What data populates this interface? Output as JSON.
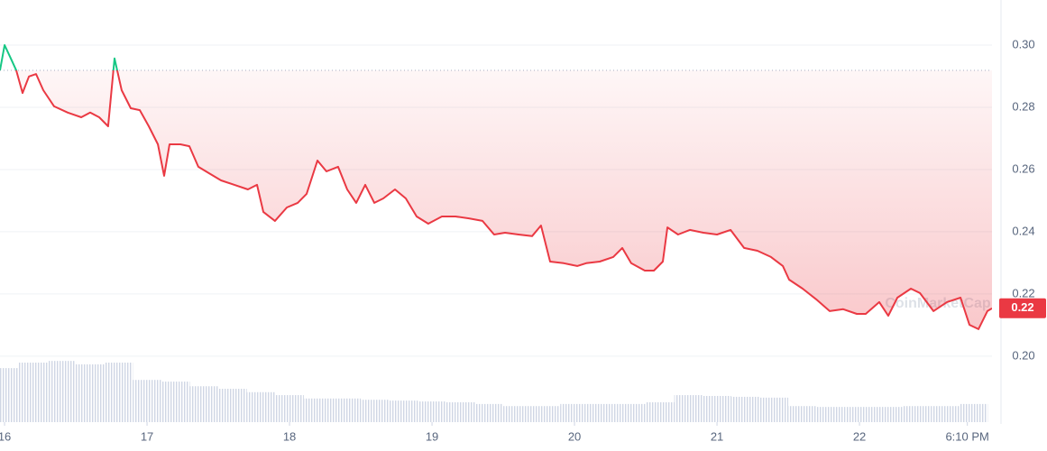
{
  "chart_data": {
    "type": "line",
    "x": [
      15.968,
      16.0,
      16.044,
      16.082,
      16.126,
      16.171,
      16.221,
      16.272,
      16.348,
      16.443,
      16.538,
      16.601,
      16.664,
      16.727,
      16.772,
      16.822,
      16.886,
      16.949,
      17.012,
      17.076,
      17.12,
      17.158,
      17.234,
      17.297,
      17.36,
      17.436,
      17.519,
      17.613,
      17.708,
      17.772,
      17.816,
      17.898,
      17.981,
      18.057,
      18.12,
      18.196,
      18.259,
      18.341,
      18.405,
      18.468,
      18.531,
      18.595,
      18.658,
      18.74,
      18.816,
      18.892,
      18.974,
      19.069,
      19.164,
      19.259,
      19.354,
      19.436,
      19.512,
      19.607,
      19.702,
      19.765,
      19.829,
      19.924,
      20.019,
      20.082,
      20.177,
      20.272,
      20.335,
      20.398,
      20.493,
      20.557,
      20.62,
      20.652,
      20.727,
      20.81,
      20.905,
      21.0,
      21.095,
      21.19,
      21.284,
      21.379,
      21.462,
      21.506,
      21.601,
      21.696,
      21.791,
      21.886,
      21.981,
      22.044,
      22.139,
      22.202,
      22.266,
      22.361,
      22.424,
      22.519,
      22.614,
      22.709,
      22.772,
      22.835,
      22.898,
      22.93
    ],
    "series": [
      {
        "values": [
          0.2919,
          0.3,
          0.2957,
          0.2919,
          0.2846,
          0.2899,
          0.2907,
          0.2855,
          0.2803,
          0.2783,
          0.2768,
          0.2783,
          0.2768,
          0.2739,
          0.2957,
          0.2855,
          0.2797,
          0.2791,
          0.2739,
          0.2681,
          0.258,
          0.2681,
          0.2681,
          0.2675,
          0.2609,
          0.2588,
          0.2565,
          0.2551,
          0.2536,
          0.2551,
          0.2464,
          0.2435,
          0.2478,
          0.2493,
          0.2522,
          0.2629,
          0.2594,
          0.2609,
          0.2536,
          0.2493,
          0.2551,
          0.2493,
          0.2507,
          0.2536,
          0.2507,
          0.2449,
          0.2426,
          0.2449,
          0.2449,
          0.2443,
          0.2435,
          0.2391,
          0.2397,
          0.2391,
          0.2386,
          0.242,
          0.2304,
          0.2299,
          0.229,
          0.2299,
          0.2304,
          0.2319,
          0.2348,
          0.2299,
          0.2275,
          0.2275,
          0.2304,
          0.2414,
          0.2391,
          0.2406,
          0.2397,
          0.2391,
          0.2406,
          0.2348,
          0.2339,
          0.2319,
          0.229,
          0.2246,
          0.2217,
          0.2183,
          0.2145,
          0.2151,
          0.2136,
          0.2136,
          0.2174,
          0.213,
          0.2188,
          0.2217,
          0.2203,
          0.2145,
          0.2174,
          0.2188,
          0.2101,
          0.2087,
          0.2145,
          0.2154
        ],
        "color": "#ea3943",
        "color_above": "#16c784"
      }
    ],
    "baseline": 0.2919,
    "last_value_label": "0.22",
    "volume": {
      "x": [
        16.0,
        16.2,
        16.4,
        16.6,
        16.8,
        17.0,
        17.2,
        17.4,
        17.6,
        17.8,
        18.0,
        18.2,
        18.4,
        18.6,
        18.8,
        19.0,
        19.2,
        19.4,
        19.6,
        19.8,
        20.0,
        20.2,
        20.4,
        20.6,
        20.8,
        21.0,
        21.2,
        21.4,
        21.6,
        21.8,
        22.0,
        22.2,
        22.4,
        22.6,
        22.8
      ],
      "values": [
        12.8,
        14.1,
        14.5,
        13.7,
        14.1,
        10.0,
        9.6,
        8.5,
        7.9,
        7.1,
        6.4,
        5.6,
        5.6,
        5.3,
        5.1,
        4.9,
        4.7,
        4.3,
        3.8,
        3.8,
        4.3,
        4.3,
        4.3,
        4.7,
        6.4,
        6.2,
        6.0,
        5.8,
        3.8,
        3.6,
        3.6,
        3.6,
        3.8,
        3.8,
        4.3
      ],
      "y2lim": [
        0,
        100
      ],
      "color": "#cfd6e4"
    },
    "xlim": [
      15.968,
      22.93
    ],
    "xticks": [
      16,
      17,
      18,
      19,
      20,
      21,
      22,
      {
        "value": 22.757,
        "label": "6:10 PM"
      }
    ],
    "ylim": [
      0.1788,
      0.3145
    ],
    "yticks": [
      {
        "value": 0.2,
        "label": "0.20"
      },
      0.22,
      0.24,
      0.26,
      0.28,
      {
        "value": 0.3,
        "label": "0.30"
      }
    ],
    "grid": true,
    "watermark": "CoinMarketCap"
  }
}
